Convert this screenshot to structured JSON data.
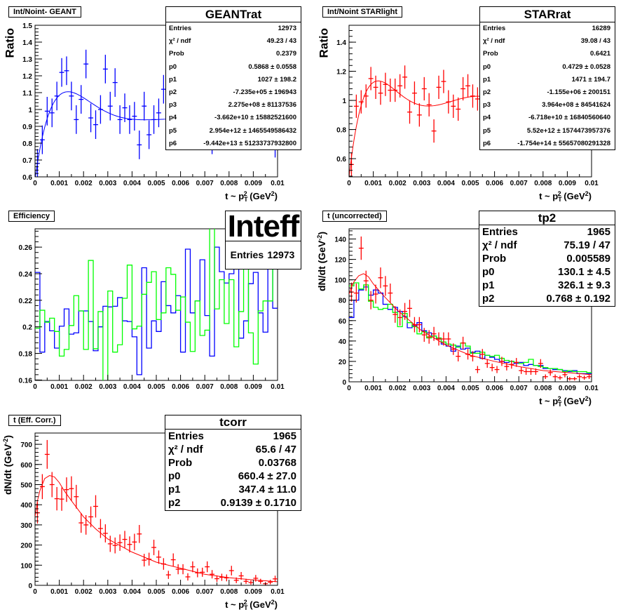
{
  "colors": {
    "blue": "#0000ff",
    "red": "#ff0000",
    "green": "#00ff00",
    "black": "#000000"
  },
  "xlabel": {
    "main": "t ~ p",
    "sub": "T",
    "sup": "2",
    "unit": " (GeV",
    "unit_sup": "2",
    "close": ")"
  },
  "ylabel_dndt": {
    "main": "dN/dt (GeV",
    "sup": "-2",
    "close": ")"
  },
  "chart_data": [
    {
      "type": "scatter",
      "title": "Int/Noint- GEANT",
      "ylabel": "Ratio",
      "xlim": [
        0,
        0.01
      ],
      "ylim": [
        0.6,
        1.5
      ],
      "xticks": [
        0,
        0.001,
        0.002,
        0.003,
        0.004,
        0.005,
        0.006,
        0.007,
        0.008,
        0.009,
        0.01
      ],
      "xtick_labels": [
        "0",
        "0.001",
        "0.002",
        "0.003",
        "0.004",
        "0.005",
        "0.006",
        "0.007",
        "0.008",
        "0.009",
        "0.01"
      ],
      "yticks": [
        0.6,
        0.7,
        0.8,
        0.9,
        1.0,
        1.1,
        1.2,
        1.3,
        1.4,
        1.5
      ],
      "ytick_labels": [
        "0.6",
        "0.7",
        "0.8",
        "0.9",
        "1",
        "1.1",
        "1.2",
        "1.3",
        "1.4",
        "1.5"
      ],
      "series": [
        {
          "name": "GEANTrat",
          "color": "blue",
          "bin_width": 0.0002,
          "err_const": 0.085,
          "y": [
            0.68,
            0.82,
            0.99,
            0.98,
            1.08,
            1.22,
            1.23,
            1.08,
            0.94,
            1.06,
            1.27,
            0.95,
            0.91,
            1.0,
            1.24,
            1.02,
            1.16,
            0.94,
            1.01,
            0.94,
            0.96,
            0.79,
            1.02,
            0.85,
            0.94,
            0.98,
            1.12,
            1.0,
            0.98,
            0.95,
            1.02,
            0.97,
            0.93,
            1.0,
            0.96,
            0.92,
            0.82,
            0.98,
            1.0,
            0.95,
            0.97,
            0.86,
            0.99,
            0.94,
            1.01,
            0.97,
            0.87,
            0.96,
            0.93,
            0.8
          ]
        }
      ],
      "fit": {
        "type": "pol6",
        "color": "blue",
        "params": [
          0.5868,
          1027,
          -723500.0,
          227500000.0,
          -36620000000.0,
          2954000000000.0,
          -94420000000000.0
        ]
      },
      "stats": {
        "title": "GEANTrat",
        "rows": [
          [
            "Entries",
            "12973"
          ],
          [
            "χ² / ndf",
            "49.23 / 43"
          ],
          [
            "Prob",
            "0.2379"
          ],
          [
            "p0",
            "0.5868 ± 0.0558"
          ],
          [
            "p1",
            "1027 ± 198.2"
          ],
          [
            "p2",
            "-7.235e+05 ± 196943"
          ],
          [
            "p3",
            "2.275e+08 ± 81137536"
          ],
          [
            "p4",
            "-3.662e+10 ± 15882521600"
          ],
          [
            "p5",
            "2.954e+12 ± 1465549586432"
          ],
          [
            "p6",
            "-9.442e+13 ± 51233737932800"
          ]
        ]
      }
    },
    {
      "type": "scatter",
      "title": "Int/Noint STARlight",
      "ylabel": "Ratio",
      "xlim": [
        0,
        0.01
      ],
      "ylim": [
        0.475,
        1.516
      ],
      "xticks": [
        0,
        0.001,
        0.002,
        0.003,
        0.004,
        0.005,
        0.006,
        0.007,
        0.008,
        0.009,
        0.01
      ],
      "xtick_labels": [
        "0",
        "0.001",
        "0.002",
        "0.003",
        "0.004",
        "0.005",
        "0.006",
        "0.007",
        "0.008",
        "0.009",
        "0.01"
      ],
      "yticks": [
        0.6,
        0.8,
        1.0,
        1.2,
        1.4
      ],
      "ytick_labels": [
        "0.6",
        "0.8",
        "1",
        "1.2",
        "1.4"
      ],
      "series": [
        {
          "name": "STARrat",
          "color": "red",
          "bin_width": 0.0002,
          "err_const": 0.08,
          "y": [
            0.56,
            0.96,
            0.99,
            1.03,
            1.15,
            1.09,
            1.05,
            1.11,
            1.07,
            1.07,
            1.1,
            1.16,
            0.92,
            1.05,
            0.9,
            1.08,
            0.97,
            0.79,
            1.09,
            1.13,
            0.99,
            0.96,
            0.94,
            1.08,
            1.1,
            1.03,
            1.01,
            1.0,
            0.98,
            1.02,
            1.05,
            0.97,
            1.0,
            1.03,
            0.99,
            1.04,
            1.01,
            0.98,
            1.02,
            1.0,
            0.97,
            1.03,
            1.01,
            0.99,
            1.0,
            1.02,
            0.98,
            1.01,
            1.0,
            1.0
          ]
        }
      ],
      "fit": {
        "type": "pol6",
        "color": "red",
        "params": [
          0.4729,
          1471,
          -1155000.0,
          396400000.0,
          -67180000000.0,
          5520000000000.0,
          -175400000000000.0
        ]
      },
      "stats": {
        "title": "STARrat",
        "rows": [
          [
            "Entries",
            "16289"
          ],
          [
            "χ² / ndf",
            "39.08 / 43"
          ],
          [
            "Prob",
            "0.6421"
          ],
          [
            "p0",
            "0.4729 ± 0.0528"
          ],
          [
            "p1",
            "1471 ± 194.7"
          ],
          [
            "p2",
            "-1.155e+06 ± 200151"
          ],
          [
            "p3",
            "3.964e+08 ± 84541624"
          ],
          [
            "p4",
            "-6.718e+10 ± 16840560640"
          ],
          [
            "p5",
            "5.52e+12 ± 1574473957376"
          ],
          [
            "p6",
            "-1.754e+14 ± 55657080291328"
          ]
        ]
      }
    },
    {
      "type": "histogram",
      "title": "Efficiency",
      "ylabel": "",
      "xlim": [
        0,
        0.01
      ],
      "ylim": [
        0.1597,
        0.2738
      ],
      "xticks": [
        0,
        0.001,
        0.002,
        0.003,
        0.004,
        0.005,
        0.006,
        0.007,
        0.008,
        0.009,
        0.01
      ],
      "xtick_labels": [
        "0",
        "0.001",
        "0.002",
        "0.003",
        "0.004",
        "0.005",
        "0.006",
        "0.007",
        "0.008",
        "0.009",
        "0.01"
      ],
      "yticks": [
        0.16,
        0.18,
        0.2,
        0.22,
        0.24,
        0.26
      ],
      "ytick_labels": [
        "0.16",
        "0.18",
        "0.2",
        "0.22",
        "0.24",
        "0.26"
      ],
      "hists": [
        {
          "name": "blue",
          "color": "blue",
          "bin_width": 0.0002,
          "values": [
            0.241,
            0.181,
            0.204,
            0.197,
            0.184,
            0.2005,
            0.2135,
            0.1945,
            0.1955,
            0.212,
            0.212,
            0.204,
            0.182,
            0.2,
            0.2155,
            0.215,
            0.2155,
            0.222,
            0.2045,
            0.204,
            0.1925,
            0.164,
            0.2445,
            0.184,
            0.2045,
            0.1965,
            0.234,
            0.216,
            0.2105,
            0.2235,
            0.181,
            0.2585,
            0.2105,
            0.2195,
            0.2505,
            0.2085,
            0.178,
            0.26,
            0.2415,
            0.233,
            0.24,
            0.245,
            0.1915,
            0.2045,
            0.2325,
            0.241,
            0.2105,
            0.196,
            0.245,
            0.214
          ]
        },
        {
          "name": "green",
          "color": "green",
          "bin_width": 0.0002,
          "values": [
            0.199,
            0.2125,
            0.2035,
            0.2065,
            0.1965,
            0.178,
            0.183,
            0.201,
            0.2235,
            0.212,
            0.183,
            0.25,
            0.1835,
            0.2115,
            0.159,
            0.227,
            0.181,
            0.1865,
            0.2215,
            0.2465,
            0.1985,
            0.2005,
            0.2245,
            0.2335,
            0.2415,
            0.2055,
            0.2105,
            0.2445,
            0.2395,
            0.2125,
            0.2225,
            0.2035,
            0.1815,
            0.2195,
            0.1935,
            0.1975,
            0.28,
            0.2135,
            0.2355,
            0.2025,
            0.2355,
            0.185,
            0.2115,
            0.28,
            0.1955,
            0.172,
            0.212,
            0.2195,
            0.2195,
            0.28
          ]
        }
      ],
      "stats": {
        "title": "Inteff",
        "rows": [
          [
            "Entries",
            "12973"
          ]
        ]
      }
    },
    {
      "type": "scatter",
      "title": "t (uncorrected)",
      "ylabel": "dN/dt",
      "xlim": [
        0,
        0.01
      ],
      "ylim": [
        0,
        150
      ],
      "xticks": [
        0,
        0.001,
        0.002,
        0.003,
        0.004,
        0.005,
        0.006,
        0.007,
        0.008,
        0.009,
        0.01
      ],
      "xtick_labels": [
        "0",
        "0.001",
        "0.002",
        "0.003",
        "0.004",
        "0.005",
        "0.006",
        "0.007",
        "0.008",
        "0.009",
        "0.01"
      ],
      "yticks": [
        0,
        20,
        40,
        60,
        80,
        100,
        120,
        140
      ],
      "ytick_labels": [
        "0",
        "20",
        "40",
        "60",
        "80",
        "100",
        "120",
        "140"
      ],
      "hists": [
        {
          "name": "blue",
          "color": "blue",
          "bin_width": 0.0002,
          "values": [
            63,
            80,
            90,
            93,
            85,
            90,
            87,
            76,
            71,
            73,
            69,
            64,
            53,
            55,
            58,
            50,
            48,
            45,
            42,
            37,
            35,
            30,
            35,
            32,
            33,
            29,
            30,
            23,
            26,
            24,
            22,
            20,
            19,
            20,
            18,
            19,
            16,
            17,
            16,
            16,
            13,
            13,
            12,
            12,
            11,
            10,
            11,
            8,
            8,
            8
          ]
        },
        {
          "name": "green",
          "color": "green",
          "bin_width": 0.0002,
          "values": [
            94,
            97,
            91,
            95,
            79,
            73,
            71,
            72,
            76,
            68,
            54,
            67,
            58,
            54,
            47,
            49,
            43,
            45,
            43,
            39,
            37,
            36,
            34,
            38,
            35,
            28,
            28,
            29,
            26,
            25,
            26,
            23,
            21,
            20,
            19,
            18,
            19,
            22,
            16,
            15,
            14,
            13,
            13,
            12,
            10,
            11,
            10,
            10,
            10,
            9
          ]
        }
      ],
      "series": [
        {
          "name": "tp2",
          "color": "red",
          "bin_width": 0.0002,
          "err_sqrt_factor": 1.0,
          "y": [
            88,
            87,
            131,
            99,
            80,
            86,
            102,
            94,
            87,
            66,
            63,
            69,
            72,
            56,
            56,
            46,
            44,
            47,
            42,
            42,
            42,
            32,
            25,
            38,
            27,
            25,
            12,
            27,
            18,
            14,
            12,
            20,
            15,
            17,
            19,
            11,
            10,
            10,
            10,
            18,
            5,
            9,
            5,
            4,
            7,
            3,
            3,
            5,
            4,
            5
          ]
        }
      ],
      "fit": {
        "type": "samples",
        "color": "red",
        "x": [
          0,
          0.0001,
          0.0002,
          0.0004,
          0.0006,
          0.0008,
          0.001,
          0.0014,
          0.002,
          0.003,
          0.004,
          0.005,
          0.006,
          0.007,
          0.008,
          0.009,
          0.01
        ],
        "y": [
          86,
          93,
          98,
          104,
          106,
          103,
          96,
          85,
          70,
          50,
          36,
          26,
          20,
          15,
          11,
          9,
          7
        ]
      },
      "stats": {
        "title": "tp2",
        "rows": [
          [
            "Entries",
            "1965"
          ],
          [
            "χ² / ndf",
            "75.19 / 47"
          ],
          [
            "Prob",
            "0.005589"
          ],
          [
            "p0",
            "130.1 ± 4.5"
          ],
          [
            "p1",
            "326.1 ± 9.3"
          ],
          [
            "p2",
            "0.768 ± 0.192"
          ]
        ]
      }
    },
    {
      "type": "scatter",
      "title": "t (Eff. Corr.)",
      "ylabel": "dN/dt",
      "xlim": [
        0,
        0.01
      ],
      "ylim": [
        0,
        756
      ],
      "xticks": [
        0,
        0.001,
        0.002,
        0.003,
        0.004,
        0.005,
        0.006,
        0.007,
        0.008,
        0.009,
        0.01
      ],
      "xtick_labels": [
        "0",
        "0.001",
        "0.002",
        "0.003",
        "0.004",
        "0.005",
        "0.006",
        "0.007",
        "0.008",
        "0.009",
        "0.01"
      ],
      "yticks": [
        0,
        100,
        200,
        300,
        400,
        500,
        600,
        700
      ],
      "ytick_labels": [
        "0",
        "100",
        "200",
        "300",
        "400",
        "500",
        "600",
        "700"
      ],
      "series": [
        {
          "name": "tcorr",
          "color": "red",
          "bin_width": 0.0002,
          "err_sqrt_factor": 2.8,
          "y": [
            360,
            490,
            650,
            500,
            430,
            428,
            475,
            480,
            440,
            310,
            300,
            340,
            392,
            282,
            258,
            206,
            198,
            212,
            228,
            203,
            215,
            255,
            125,
            130,
            188,
            140,
            106,
            52,
            127,
            80,
            80,
            42,
            92,
            62,
            65,
            92,
            55,
            33,
            40,
            37,
            73,
            25,
            47,
            20,
            14,
            35,
            20,
            8,
            16,
            32
          ]
        }
      ],
      "fit": {
        "type": "samples",
        "color": "red",
        "x": [
          0,
          0.0001,
          0.0002,
          0.0004,
          0.0006,
          0.0008,
          0.001,
          0.0012,
          0.0015,
          0.002,
          0.0025,
          0.003,
          0.004,
          0.005,
          0.006,
          0.007,
          0.008,
          0.009,
          0.01
        ],
        "y": [
          340,
          420,
          470,
          530,
          545,
          538,
          510,
          470,
          420,
          340,
          280,
          230,
          165,
          115,
          85,
          55,
          38,
          27,
          18
        ]
      },
      "stats": {
        "title": "tcorr",
        "rows": [
          [
            "Entries",
            "1965"
          ],
          [
            "χ² / ndf",
            "65.6 / 47"
          ],
          [
            "Prob",
            "0.03768"
          ],
          [
            "p0",
            "660.4 ± 27.0"
          ],
          [
            "p1",
            "347.4 ± 11.0"
          ],
          [
            "p2",
            "0.9139 ± 0.1710"
          ]
        ]
      }
    }
  ]
}
